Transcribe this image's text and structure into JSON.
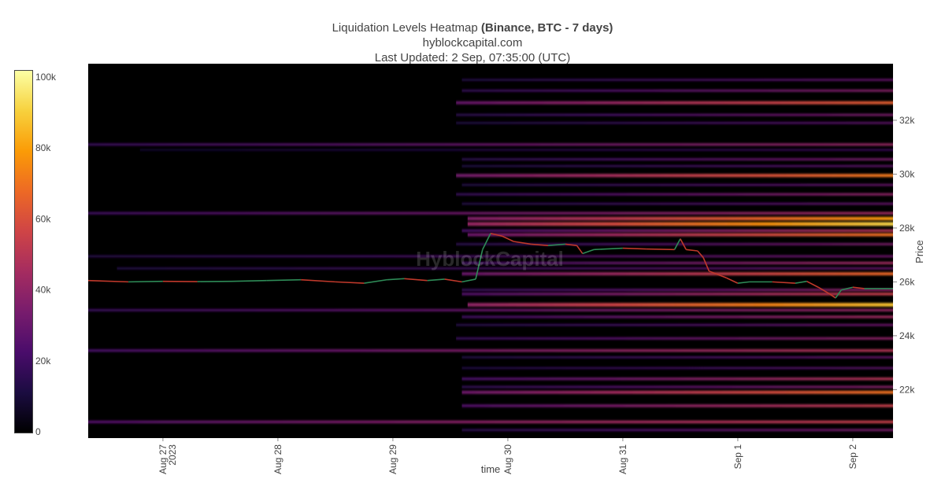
{
  "title": {
    "line1_prefix": "Liquidation Levels Heatmap",
    "line1_bold": "(Binance, BTC - 7 days)",
    "line2": "hyblockcapital.com",
    "line3": "Last Updated: 2 Sep, 07:35:00 (UTC)"
  },
  "watermark": "HyblockCapital",
  "colors": {
    "background": "#000000",
    "price_up": "#2e8b57",
    "price_down": "#c0392b",
    "scale": [
      "#000000",
      "#1b0c41",
      "#4a0c6b",
      "#781c6d",
      "#a52c60",
      "#cf4446",
      "#ed6925",
      "#fb9b06",
      "#f7d13d",
      "#fcffa4"
    ]
  },
  "chart_data": {
    "type": "heatmap",
    "xlabel": "time",
    "ylabel": "Price",
    "x_ticks": [
      {
        "day": 0,
        "label": "Aug 27",
        "sub": "2023"
      },
      {
        "day": 1,
        "label": "Aug 28",
        "sub": ""
      },
      {
        "day": 2,
        "label": "Aug 29",
        "sub": ""
      },
      {
        "day": 3,
        "label": "Aug 30",
        "sub": ""
      },
      {
        "day": 4,
        "label": "Aug 31",
        "sub": ""
      },
      {
        "day": 5,
        "label": "Sep 1",
        "sub": ""
      },
      {
        "day": 6,
        "label": "Sep 2",
        "sub": ""
      }
    ],
    "x_range_days": [
      -0.65,
      6.35
    ],
    "y_range": [
      20200,
      34100
    ],
    "y_ticks": [
      {
        "value": 22000,
        "label": "22k"
      },
      {
        "value": 24000,
        "label": "24k"
      },
      {
        "value": 26000,
        "label": "26k"
      },
      {
        "value": 28000,
        "label": "28k"
      },
      {
        "value": 30000,
        "label": "30k"
      },
      {
        "value": 32000,
        "label": "32k"
      }
    ],
    "colorbar": {
      "min": 0,
      "max": 102000,
      "ticks": [
        {
          "value": 0,
          "label": "0"
        },
        {
          "value": 20000,
          "label": "20k"
        },
        {
          "value": 40000,
          "label": "40k"
        },
        {
          "value": 60000,
          "label": "60k"
        },
        {
          "value": 80000,
          "label": "80k"
        },
        {
          "value": 100000,
          "label": "100k"
        }
      ]
    },
    "levels": [
      {
        "price": 33500,
        "start_day": 2.6,
        "intensity": 30000
      },
      {
        "price": 33100,
        "start_day": 2.6,
        "intensity": 38000
      },
      {
        "price": 32650,
        "start_day": 2.55,
        "intensity": 65000
      },
      {
        "price": 32200,
        "start_day": 2.55,
        "intensity": 35000
      },
      {
        "price": 31900,
        "start_day": 2.55,
        "intensity": 28000
      },
      {
        "price": 31100,
        "start_day": -0.65,
        "intensity": 42000
      },
      {
        "price": 30900,
        "start_day": -0.2,
        "intensity": 20000
      },
      {
        "price": 30550,
        "start_day": 2.6,
        "intensity": 35000
      },
      {
        "price": 30300,
        "start_day": 2.6,
        "intensity": 28000
      },
      {
        "price": 29950,
        "start_day": 2.55,
        "intensity": 72000
      },
      {
        "price": 29600,
        "start_day": 2.6,
        "intensity": 30000
      },
      {
        "price": 29250,
        "start_day": 2.55,
        "intensity": 40000
      },
      {
        "price": 28900,
        "start_day": 2.6,
        "intensity": 30000
      },
      {
        "price": 28550,
        "start_day": -0.65,
        "intensity": 45000
      },
      {
        "price": 28350,
        "start_day": 2.65,
        "intensity": 80000
      },
      {
        "price": 28150,
        "start_day": 2.65,
        "intensity": 92000
      },
      {
        "price": 27900,
        "start_day": 2.6,
        "intensity": 50000
      },
      {
        "price": 27750,
        "start_day": 2.65,
        "intensity": 70000
      },
      {
        "price": 27400,
        "start_day": 2.55,
        "intensity": 35000
      },
      {
        "price": 26950,
        "start_day": -0.65,
        "intensity": 32000
      },
      {
        "price": 26700,
        "start_day": 2.6,
        "intensity": 45000
      },
      {
        "price": 26500,
        "start_day": -0.4,
        "intensity": 30000
      },
      {
        "price": 26300,
        "start_day": 2.6,
        "intensity": 68000
      },
      {
        "price": 25700,
        "start_day": 2.6,
        "intensity": 40000
      },
      {
        "price": 25550,
        "start_day": 2.6,
        "intensity": 55000
      },
      {
        "price": 25150,
        "start_day": 2.65,
        "intensity": 88000
      },
      {
        "price": 24950,
        "start_day": -0.65,
        "intensity": 42000
      },
      {
        "price": 24700,
        "start_day": 2.6,
        "intensity": 45000
      },
      {
        "price": 24400,
        "start_day": 2.55,
        "intensity": 32000
      },
      {
        "price": 23900,
        "start_day": 2.55,
        "intensity": 40000
      },
      {
        "price": 23450,
        "start_day": -0.65,
        "intensity": 50000
      },
      {
        "price": 23200,
        "start_day": 2.6,
        "intensity": 30000
      },
      {
        "price": 22800,
        "start_day": 2.6,
        "intensity": 28000
      },
      {
        "price": 22400,
        "start_day": 2.6,
        "intensity": 50000
      },
      {
        "price": 22100,
        "start_day": 2.6,
        "intensity": 38000
      },
      {
        "price": 21900,
        "start_day": 2.6,
        "intensity": 70000
      },
      {
        "price": 21400,
        "start_day": 2.6,
        "intensity": 55000
      },
      {
        "price": 20800,
        "start_day": -0.65,
        "intensity": 55000
      },
      {
        "price": 20500,
        "start_day": 2.6,
        "intensity": 35000
      }
    ],
    "price_series": {
      "name": "BTC",
      "points": [
        [
          -0.65,
          26050
        ],
        [
          -0.3,
          26000
        ],
        [
          0.0,
          26020
        ],
        [
          0.3,
          26010
        ],
        [
          0.6,
          26020
        ],
        [
          0.9,
          26050
        ],
        [
          1.2,
          26080
        ],
        [
          1.5,
          26000
        ],
        [
          1.75,
          25950
        ],
        [
          1.95,
          26080
        ],
        [
          2.1,
          26120
        ],
        [
          2.3,
          26050
        ],
        [
          2.45,
          26100
        ],
        [
          2.6,
          26000
        ],
        [
          2.72,
          26100
        ],
        [
          2.78,
          27200
        ],
        [
          2.85,
          27800
        ],
        [
          2.95,
          27700
        ],
        [
          3.05,
          27500
        ],
        [
          3.2,
          27400
        ],
        [
          3.35,
          27350
        ],
        [
          3.5,
          27400
        ],
        [
          3.6,
          27350
        ],
        [
          3.65,
          27050
        ],
        [
          3.75,
          27200
        ],
        [
          4.0,
          27250
        ],
        [
          4.2,
          27220
        ],
        [
          4.45,
          27200
        ],
        [
          4.5,
          27600
        ],
        [
          4.55,
          27200
        ],
        [
          4.65,
          27150
        ],
        [
          4.7,
          26900
        ],
        [
          4.75,
          26400
        ],
        [
          4.9,
          26150
        ],
        [
          5.0,
          25950
        ],
        [
          5.1,
          26000
        ],
        [
          5.3,
          26000
        ],
        [
          5.5,
          25950
        ],
        [
          5.6,
          26020
        ],
        [
          5.7,
          25800
        ],
        [
          5.8,
          25550
        ],
        [
          5.85,
          25400
        ],
        [
          5.9,
          25700
        ],
        [
          6.0,
          25800
        ],
        [
          6.1,
          25750
        ],
        [
          6.35,
          25750
        ]
      ]
    }
  }
}
